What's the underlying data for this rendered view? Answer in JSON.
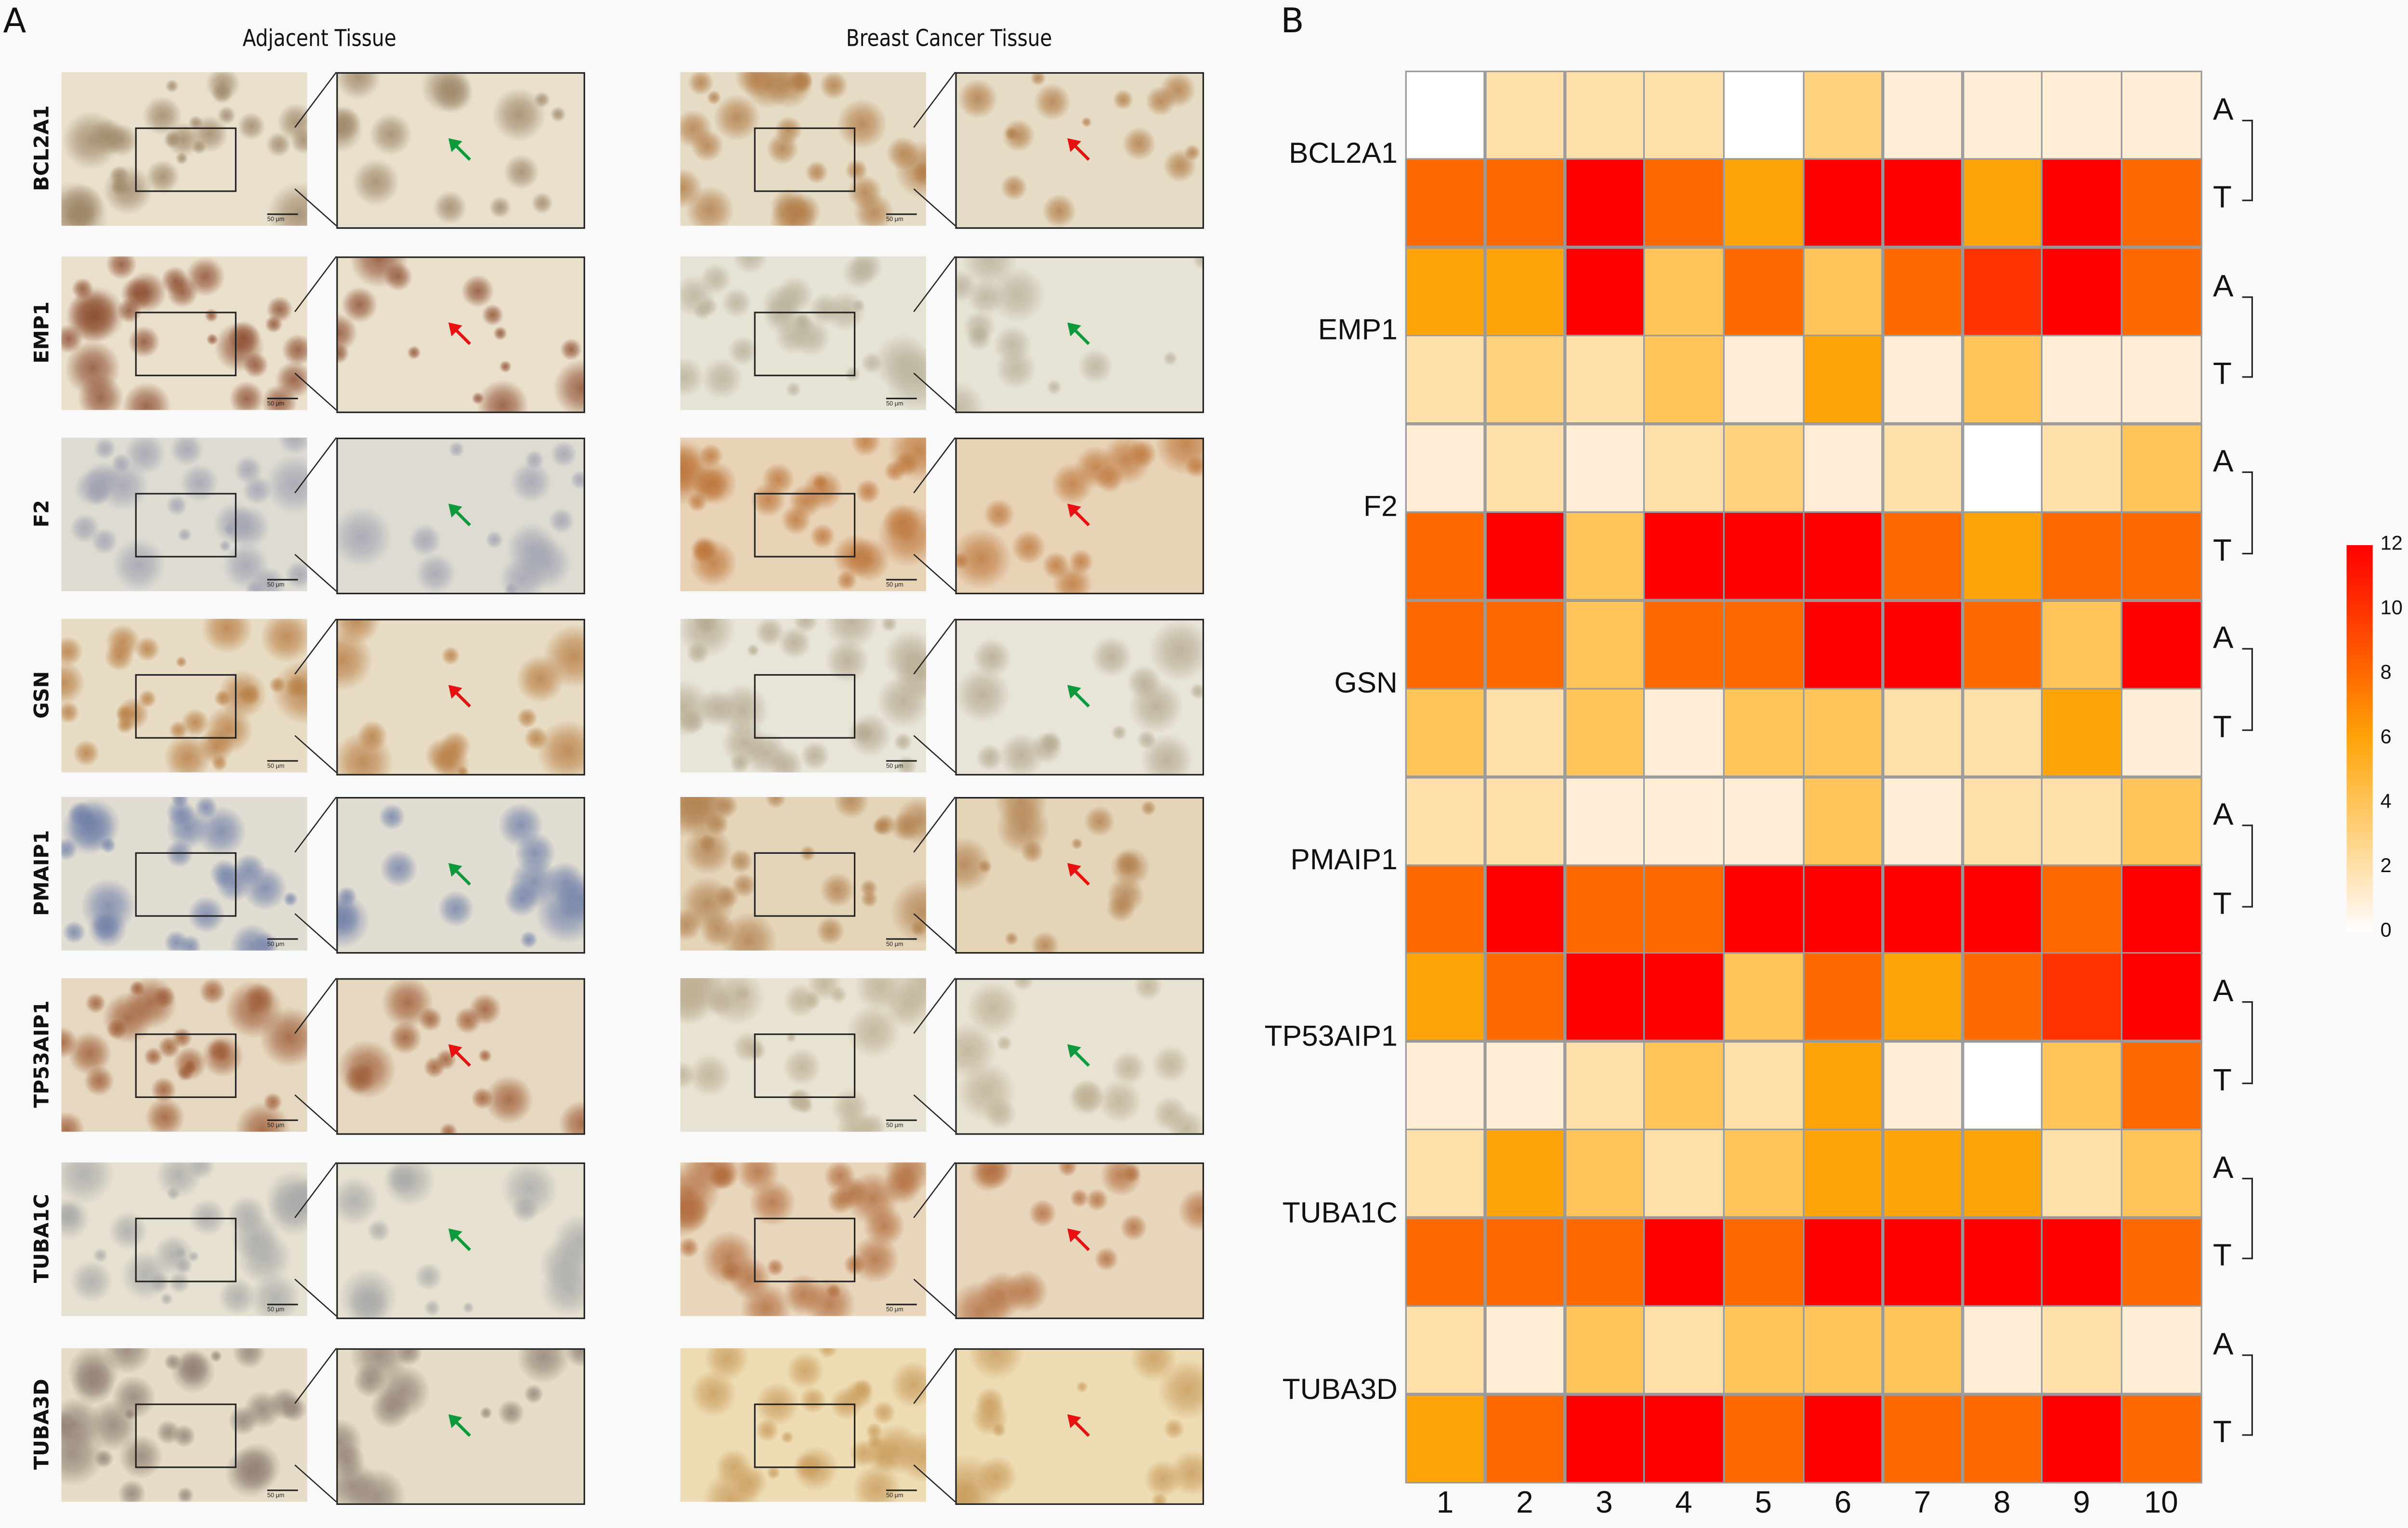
{
  "panel_a": {
    "letter": "A",
    "adjacent_title": "Adjacent Tissue",
    "cancer_title": "Breast Cancer Tissue",
    "scale_bar_label": "50 μm",
    "rows": [
      {
        "gene": "BCL2A1",
        "adjacent": {
          "base": "#e8e0cc",
          "stain": "#9c8466",
          "arrow": "green"
        },
        "cancer": {
          "base": "#e6dcc6",
          "stain": "#b07a44",
          "arrow": "red"
        }
      },
      {
        "gene": "EMP1",
        "adjacent": {
          "base": "#eadfcb",
          "stain": "#8a4a2c",
          "arrow": "red"
        },
        "cancer": {
          "base": "#e6e2d4",
          "stain": "#b8b09a",
          "arrow": "green"
        }
      },
      {
        "gene": "F2",
        "adjacent": {
          "base": "#dedcd2",
          "stain": "#9ea0b0",
          "arrow": "green"
        },
        "cancer": {
          "base": "#e8d2b6",
          "stain": "#bc7438",
          "arrow": "red"
        }
      },
      {
        "gene": "GSN",
        "adjacent": {
          "base": "#e8dcc4",
          "stain": "#b67a40",
          "arrow": "red"
        },
        "cancer": {
          "base": "#e8e4d8",
          "stain": "#b4a88e",
          "arrow": "green"
        }
      },
      {
        "gene": "PMAIP1",
        "adjacent": {
          "base": "#e2ddd2",
          "stain": "#7080a8",
          "arrow": "green"
        },
        "cancer": {
          "base": "#e4d4b8",
          "stain": "#b07e4c",
          "arrow": "red"
        }
      },
      {
        "gene": "TP53AIP1",
        "adjacent": {
          "base": "#e6d8c0",
          "stain": "#9a5630",
          "arrow": "red"
        },
        "cancer": {
          "base": "#e8e2d2",
          "stain": "#bcae92",
          "arrow": "green"
        }
      },
      {
        "gene": "TUBA1C",
        "adjacent": {
          "base": "#e6e0d0",
          "stain": "#a8a8a8",
          "arrow": "green"
        },
        "cancer": {
          "base": "#e8d6bc",
          "stain": "#b06a3a",
          "arrow": "red"
        }
      },
      {
        "gene": "TUBA3D",
        "adjacent": {
          "base": "#e6dcc8",
          "stain": "#8e7e70",
          "arrow": "green"
        },
        "cancer": {
          "base": "#eedcb4",
          "stain": "#c89a5a",
          "arrow": "red"
        }
      }
    ],
    "arrow_colors": {
      "green": "#0e9a3c",
      "red": "#e81010"
    }
  },
  "panel_b": {
    "letter": "B"
  },
  "chart_data": {
    "type": "heatmap",
    "columns": [
      "1",
      "2",
      "3",
      "4",
      "5",
      "6",
      "7",
      "8",
      "9",
      "10"
    ],
    "genes": [
      "BCL2A1",
      "EMP1",
      "F2",
      "GSN",
      "PMAIP1",
      "TP53AIP1",
      "TUBA1C",
      "TUBA3D"
    ],
    "row_groups": [
      "A",
      "T"
    ],
    "rows": [
      {
        "gene": "BCL2A1",
        "group": "A",
        "values": [
          0,
          2,
          2,
          2,
          0,
          3,
          1,
          1,
          1,
          1
        ]
      },
      {
        "gene": "BCL2A1",
        "group": "T",
        "values": [
          8,
          8,
          12,
          8,
          6,
          12,
          12,
          6,
          12,
          8
        ]
      },
      {
        "gene": "EMP1",
        "group": "A",
        "values": [
          6,
          6,
          12,
          4,
          8,
          4,
          8,
          10,
          12,
          8
        ]
      },
      {
        "gene": "EMP1",
        "group": "T",
        "values": [
          2,
          3,
          2,
          4,
          1,
          6,
          1,
          4,
          1,
          1
        ]
      },
      {
        "gene": "F2",
        "group": "A",
        "values": [
          1,
          2,
          1,
          2,
          3,
          1,
          2,
          0,
          2,
          4
        ]
      },
      {
        "gene": "F2",
        "group": "T",
        "values": [
          8,
          12,
          4,
          12,
          12,
          12,
          8,
          6,
          8,
          8
        ]
      },
      {
        "gene": "GSN",
        "group": "A",
        "values": [
          8,
          8,
          4,
          8,
          8,
          12,
          12,
          8,
          4,
          12
        ]
      },
      {
        "gene": "GSN",
        "group": "T",
        "values": [
          4,
          2,
          4,
          1,
          4,
          4,
          2,
          2,
          6,
          1
        ]
      },
      {
        "gene": "PMAIP1",
        "group": "A",
        "values": [
          2,
          2,
          1,
          1,
          1,
          4,
          1,
          2,
          2,
          4
        ]
      },
      {
        "gene": "PMAIP1",
        "group": "T",
        "values": [
          8,
          12,
          8,
          8,
          12,
          12,
          12,
          12,
          8,
          12
        ]
      },
      {
        "gene": "TP53AIP1",
        "group": "A",
        "values": [
          6,
          8,
          12,
          12,
          4,
          8,
          6,
          8,
          10,
          12
        ]
      },
      {
        "gene": "TP53AIP1",
        "group": "T",
        "values": [
          1,
          1,
          2,
          4,
          2,
          6,
          1,
          0,
          4,
          8
        ]
      },
      {
        "gene": "TUBA1C",
        "group": "A",
        "values": [
          2,
          6,
          4,
          2,
          4,
          6,
          6,
          6,
          2,
          4
        ]
      },
      {
        "gene": "TUBA1C",
        "group": "T",
        "values": [
          8,
          8,
          8,
          12,
          8,
          12,
          12,
          12,
          12,
          8
        ]
      },
      {
        "gene": "TUBA3D",
        "group": "A",
        "values": [
          2,
          1,
          4,
          2,
          4,
          4,
          4,
          1,
          2,
          1
        ]
      },
      {
        "gene": "TUBA3D",
        "group": "T",
        "values": [
          6,
          8,
          12,
          12,
          8,
          12,
          8,
          8,
          12,
          8
        ]
      }
    ],
    "colorbar": {
      "min": 0,
      "max": 12,
      "ticks": [
        "0",
        "2",
        "4",
        "6",
        "8",
        "10",
        "12"
      ],
      "colors": [
        {
          "v": 0,
          "c": "#ffffff"
        },
        {
          "v": 1,
          "c": "#ffeed5"
        },
        {
          "v": 2,
          "c": "#ffe0ab"
        },
        {
          "v": 3,
          "c": "#ffd280"
        },
        {
          "v": 4,
          "c": "#ffc45a"
        },
        {
          "v": 6,
          "c": "#ffa40a"
        },
        {
          "v": 8,
          "c": "#ff6a00"
        },
        {
          "v": 10,
          "c": "#ff3300"
        },
        {
          "v": 12,
          "c": "#ff0000"
        }
      ]
    },
    "grid_color": "#9a9a9a"
  }
}
